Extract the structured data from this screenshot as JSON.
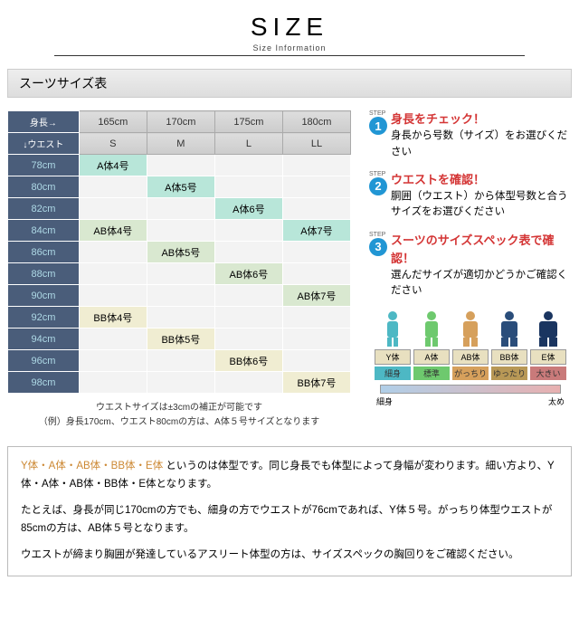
{
  "header": {
    "title": "SIZE",
    "subtitle": "Size Information"
  },
  "section_title": "スーツサイズ表",
  "table": {
    "corner_top": "身長→",
    "corner_left": "↓ウエスト",
    "heights": [
      "165cm",
      "170cm",
      "175cm",
      "180cm"
    ],
    "sizes": [
      "S",
      "M",
      "L",
      "LL"
    ],
    "rows": [
      {
        "waist": "78cm",
        "cells": [
          {
            "v": "A体4号",
            "c": "a"
          },
          {
            "v": "",
            "c": ""
          },
          {
            "v": "",
            "c": ""
          },
          {
            "v": "",
            "c": ""
          }
        ]
      },
      {
        "waist": "80cm",
        "cells": [
          {
            "v": "",
            "c": ""
          },
          {
            "v": "A体5号",
            "c": "a"
          },
          {
            "v": "",
            "c": ""
          },
          {
            "v": "",
            "c": ""
          }
        ]
      },
      {
        "waist": "82cm",
        "cells": [
          {
            "v": "",
            "c": ""
          },
          {
            "v": "",
            "c": ""
          },
          {
            "v": "A体6号",
            "c": "a"
          },
          {
            "v": "",
            "c": ""
          }
        ]
      },
      {
        "waist": "84cm",
        "cells": [
          {
            "v": "AB体4号",
            "c": "ab"
          },
          {
            "v": "",
            "c": ""
          },
          {
            "v": "",
            "c": ""
          },
          {
            "v": "A体7号",
            "c": "a"
          }
        ]
      },
      {
        "waist": "86cm",
        "cells": [
          {
            "v": "",
            "c": ""
          },
          {
            "v": "AB体5号",
            "c": "ab"
          },
          {
            "v": "",
            "c": ""
          },
          {
            "v": "",
            "c": ""
          }
        ]
      },
      {
        "waist": "88cm",
        "cells": [
          {
            "v": "",
            "c": ""
          },
          {
            "v": "",
            "c": ""
          },
          {
            "v": "AB体6号",
            "c": "ab"
          },
          {
            "v": "",
            "c": ""
          }
        ]
      },
      {
        "waist": "90cm",
        "cells": [
          {
            "v": "",
            "c": ""
          },
          {
            "v": "",
            "c": ""
          },
          {
            "v": "",
            "c": ""
          },
          {
            "v": "AB体7号",
            "c": "ab"
          }
        ]
      },
      {
        "waist": "92cm",
        "cells": [
          {
            "v": "BB体4号",
            "c": "bb"
          },
          {
            "v": "",
            "c": ""
          },
          {
            "v": "",
            "c": ""
          },
          {
            "v": "",
            "c": ""
          }
        ]
      },
      {
        "waist": "94cm",
        "cells": [
          {
            "v": "",
            "c": ""
          },
          {
            "v": "BB体5号",
            "c": "bb"
          },
          {
            "v": "",
            "c": ""
          },
          {
            "v": "",
            "c": ""
          }
        ]
      },
      {
        "waist": "96cm",
        "cells": [
          {
            "v": "",
            "c": ""
          },
          {
            "v": "",
            "c": ""
          },
          {
            "v": "BB体6号",
            "c": "bb"
          },
          {
            "v": "",
            "c": ""
          }
        ]
      },
      {
        "waist": "98cm",
        "cells": [
          {
            "v": "",
            "c": ""
          },
          {
            "v": "",
            "c": ""
          },
          {
            "v": "",
            "c": ""
          },
          {
            "v": "BB体7号",
            "c": "bb"
          }
        ]
      }
    ],
    "note1": "ウエストサイズは±3cmの補正が可能です",
    "note2": "（例）身長170cm、ウエスト80cmの方は、A体５号サイズとなります"
  },
  "steps": [
    {
      "num": "1",
      "title": "身長をチェック！",
      "text": "身長から号数（サイズ）をお選びください"
    },
    {
      "num": "2",
      "title": "ウエストを確認！",
      "text": "胴囲（ウエスト）から体型号数と合うサイズをお選びください"
    },
    {
      "num": "3",
      "title": "スーツのサイズスペック表で確認！",
      "text": "選んだサイズが適切かどうかご確認ください"
    }
  ],
  "body_types": [
    {
      "label": "Y体",
      "desc": "細身",
      "color": "#4db8c4",
      "dc": "c1",
      "w": 12
    },
    {
      "label": "A体",
      "desc": "標準",
      "color": "#6ec96e",
      "dc": "c2",
      "w": 14
    },
    {
      "label": "AB体",
      "desc": "がっちり",
      "color": "#d6a05c",
      "dc": "c3",
      "w": 16
    },
    {
      "label": "BB体",
      "desc": "ゆったり",
      "color": "#2a4d7a",
      "dc": "c4",
      "w": 18
    },
    {
      "label": "E体",
      "desc": "大きい",
      "color": "#1a3560",
      "dc": "c5",
      "w": 20
    }
  ],
  "gradient": {
    "left": "細身",
    "right": "太め"
  },
  "desc": {
    "p1a": "Y体・A体・AB体・BB体・E体",
    "p1b": " というのは体型です。同じ身長でも体型によって身幅が変わります。細い方より、Y体・A体・AB体・BB体・E体となります。",
    "p2": "たとえば、身長が同じ170cmの方でも、細身の方でウエストが76cmであれば、Y体５号。がっちり体型ウエストが85cmの方は、AB体５号となります。",
    "p3": "ウエストが締まり胸囲が発達しているアスリート体型の方は、サイズスペックの胸回りをご確認ください。"
  },
  "step_label": "STEP"
}
